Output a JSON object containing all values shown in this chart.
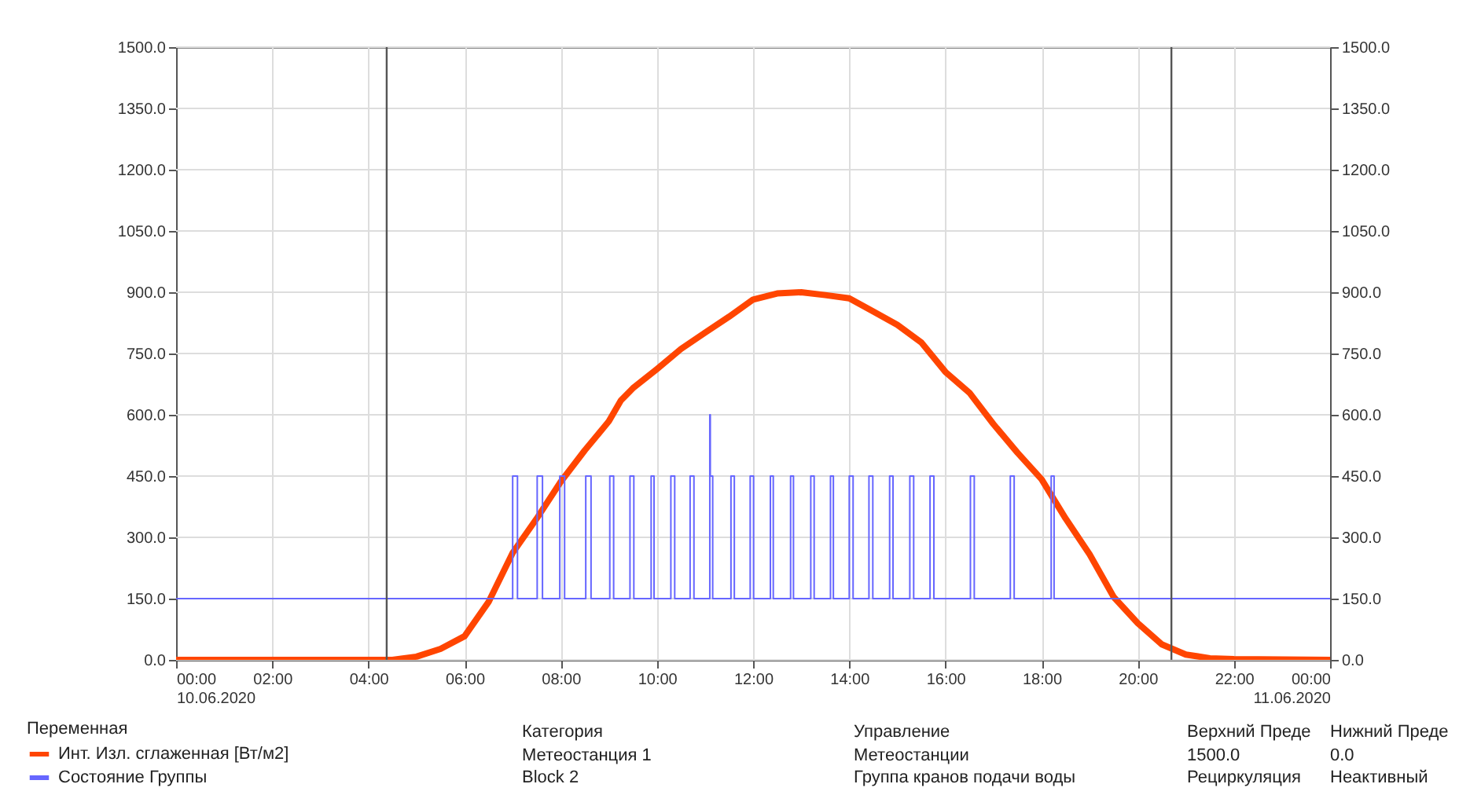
{
  "chart_data": {
    "type": "line",
    "xlim": [
      0,
      24
    ],
    "xticks": [
      {
        "value": 0,
        "label": "00:00\n10.06.2020"
      },
      {
        "value": 2,
        "label": "02:00"
      },
      {
        "value": 4,
        "label": "04:00"
      },
      {
        "value": 6,
        "label": "06:00"
      },
      {
        "value": 8,
        "label": "08:00"
      },
      {
        "value": 10,
        "label": "10:00"
      },
      {
        "value": 12,
        "label": "12:00"
      },
      {
        "value": 14,
        "label": "14:00"
      },
      {
        "value": 16,
        "label": "16:00"
      },
      {
        "value": 18,
        "label": "18:00"
      },
      {
        "value": 20,
        "label": "20:00"
      },
      {
        "value": 22,
        "label": "22:00"
      },
      {
        "value": 24,
        "label": "00:00\n11.06.2020"
      }
    ],
    "ylim": [
      0,
      1500
    ],
    "yticks": [
      {
        "value": 0,
        "label": "0.0"
      },
      {
        "value": 150,
        "label": "150.0"
      },
      {
        "value": 300,
        "label": "300.0"
      },
      {
        "value": 450,
        "label": "450.0"
      },
      {
        "value": 600,
        "label": "600.0"
      },
      {
        "value": 750,
        "label": "750.0"
      },
      {
        "value": 900,
        "label": "900.0"
      },
      {
        "value": 1050,
        "label": "1050.0"
      },
      {
        "value": 1200,
        "label": "1200.0"
      },
      {
        "value": 1350,
        "label": "1350.0"
      },
      {
        "value": 1500,
        "label": "1500.0"
      }
    ],
    "y2lim": [
      0,
      1500
    ],
    "y2ticks": [
      {
        "value": 0,
        "label": "0.0"
      },
      {
        "value": 150,
        "label": "150.0"
      },
      {
        "value": 300,
        "label": "300.0"
      },
      {
        "value": 450,
        "label": "450.0"
      },
      {
        "value": 600,
        "label": "600.0"
      },
      {
        "value": 750,
        "label": "750.0"
      },
      {
        "value": 900,
        "label": "900.0"
      },
      {
        "value": 1050,
        "label": "1050.0"
      },
      {
        "value": 1200,
        "label": "1200.0"
      },
      {
        "value": 1350,
        "label": "1350.0"
      },
      {
        "value": 1500,
        "label": "1500.0"
      }
    ],
    "grid": true,
    "legend": "bottom left",
    "legend_title": "Переменная",
    "ref_lines": [
      {
        "axis": "x",
        "value": 4.38,
        "color": "#555555"
      },
      {
        "axis": "x",
        "value": 20.7,
        "color": "#555555"
      }
    ],
    "series": [
      {
        "name": "Инт. Изл. сглаженная [Вт/м2]",
        "type": "line",
        "color": "#ff4500",
        "x": [
          0,
          4.5,
          5,
          5.5,
          6,
          6.5,
          7,
          7.5,
          8,
          8.5,
          9,
          9.25,
          9.5,
          10,
          10.5,
          11,
          11.5,
          12,
          12.5,
          13,
          13.5,
          14,
          14.5,
          15,
          15.5,
          16,
          16.5,
          17,
          17.5,
          18,
          18.5,
          19,
          19.5,
          20,
          20.5,
          21,
          21.5,
          22,
          24
        ],
        "values": [
          0,
          0,
          8,
          27,
          58,
          142,
          262,
          346,
          436,
          513,
          584,
          635,
          665,
          712,
          761,
          801,
          840,
          882,
          897,
          900,
          893,
          885,
          853,
          820,
          777,
          705,
          654,
          577,
          507,
          442,
          346,
          258,
          154,
          90,
          38,
          13,
          4,
          2,
          0
        ]
      },
      {
        "name": "Состояние Группы",
        "type": "step",
        "color": "#6666ff",
        "x": [
          0,
          7.0,
          7.1,
          7.51,
          7.62,
          7.98,
          8.08,
          8.52,
          8.63,
          9.02,
          9.1,
          9.44,
          9.52,
          9.88,
          9.94,
          10.29,
          10.37,
          10.69,
          10.77,
          11.1,
          11.11,
          11.16,
          11.54,
          11.61,
          11.94,
          12.01,
          12.36,
          12.42,
          12.78,
          12.84,
          13.2,
          13.27,
          13.61,
          13.67,
          14.0,
          14.08,
          14.41,
          14.49,
          14.84,
          14.91,
          15.26,
          15.34,
          15.68,
          15.76,
          16.52,
          16.6,
          17.35,
          17.43,
          18.2,
          18.26,
          24
        ],
        "values": [
          150,
          450,
          150,
          450,
          150,
          450,
          150,
          450,
          150,
          450,
          150,
          450,
          150,
          450,
          150,
          450,
          150,
          450,
          150,
          600,
          450,
          150,
          450,
          150,
          450,
          150,
          450,
          150,
          450,
          150,
          450,
          150,
          450,
          150,
          450,
          150,
          450,
          150,
          450,
          150,
          450,
          150,
          450,
          150,
          450,
          150,
          450,
          150,
          450,
          150,
          150
        ]
      }
    ],
    "annotations": [
      "Категория",
      "Управление",
      "Верхний Преде",
      "Нижний Преде",
      "Метеостанция 1",
      "Метеостанции",
      "1500.0",
      "0.0",
      "Block 2",
      "Группа кранов подачи воды",
      "Рециркуляция",
      "Неактивный"
    ]
  }
}
